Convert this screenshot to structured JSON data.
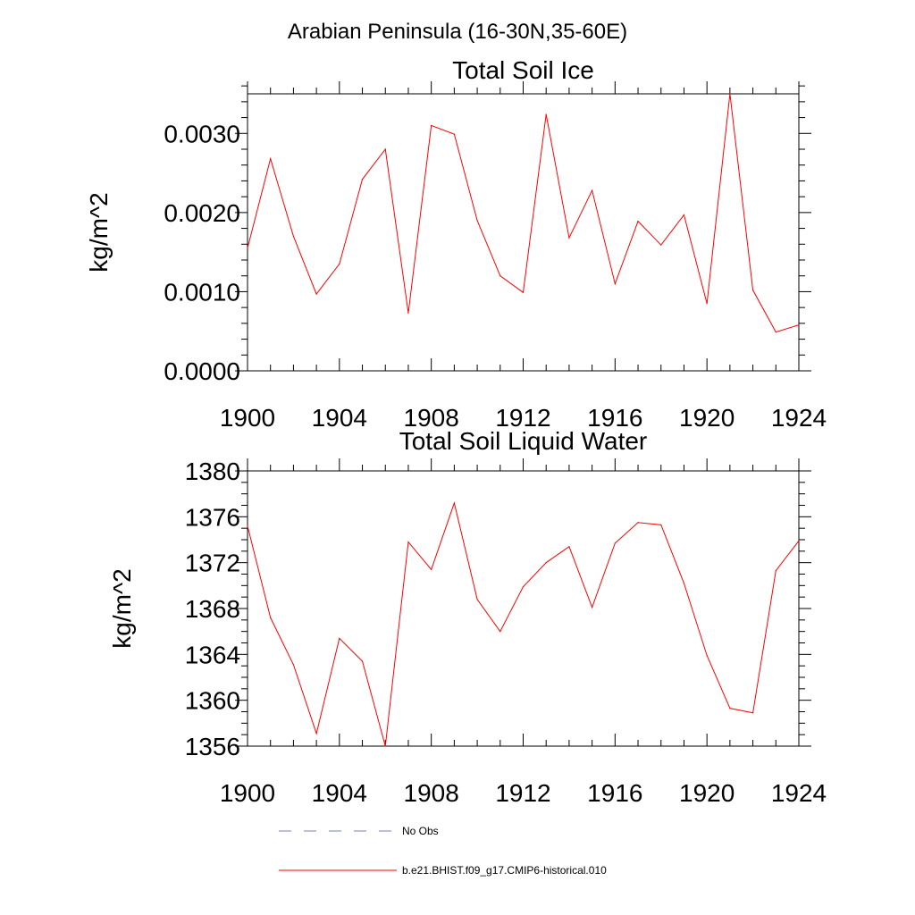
{
  "figure": {
    "supertitle": "Arabian Peninsula (16-30N,35-60E)"
  },
  "legend": {
    "items": [
      {
        "label": "No Obs",
        "color": "#7b7fb8",
        "dash": true
      },
      {
        "label": "b.e21.BHIST.f09_g17.CMIP6-historical.010",
        "color": "#ff0000",
        "dash": false
      }
    ]
  },
  "chart_data": [
    {
      "type": "line",
      "title": "Total Soil Ice",
      "xlabel": "",
      "ylabel": "kg/m^2",
      "xlim": [
        1900,
        1924
      ],
      "ylim": [
        0.0,
        0.0035
      ],
      "xticks": [
        1900,
        1904,
        1908,
        1912,
        1916,
        1920,
        1924
      ],
      "xtick_labels": [
        "1900",
        "1904",
        "1908",
        "1912",
        "1916",
        "1920",
        "1924"
      ],
      "yticks": [
        0.0,
        0.001,
        0.002,
        0.003
      ],
      "ytick_labels": [
        "0.0000",
        "0.0010",
        "0.0020",
        "0.0030"
      ],
      "grid": false,
      "series": [
        {
          "name": "b.e21.BHIST.f09_g17.CMIP6-historical.010",
          "color": "#ff0000",
          "x": [
            1900,
            1901,
            1902,
            1903,
            1904,
            1905,
            1906,
            1907,
            1908,
            1909,
            1910,
            1911,
            1912,
            1913,
            1914,
            1915,
            1916,
            1917,
            1918,
            1919,
            1920,
            1921,
            1922,
            1923,
            1924
          ],
          "y": [
            0.00155,
            0.00268,
            0.0017,
            0.00097,
            0.00135,
            0.00242,
            0.0028,
            0.00073,
            0.0031,
            0.00299,
            0.0019,
            0.0012,
            0.00099,
            0.00324,
            0.00168,
            0.00228,
            0.0011,
            0.00189,
            0.00159,
            0.00197,
            0.00085,
            0.0035,
            0.00102,
            0.00049,
            0.00058
          ]
        }
      ]
    },
    {
      "type": "line",
      "title": "Total Soil Liquid Water",
      "xlabel": "",
      "ylabel": "kg/m^2",
      "xlim": [
        1900,
        1924
      ],
      "ylim": [
        1356,
        1380
      ],
      "xticks": [
        1900,
        1904,
        1908,
        1912,
        1916,
        1920,
        1924
      ],
      "xtick_labels": [
        "1900",
        "1904",
        "1908",
        "1912",
        "1916",
        "1920",
        "1924"
      ],
      "yticks": [
        1356,
        1360,
        1364,
        1368,
        1372,
        1376,
        1380
      ],
      "ytick_labels": [
        "1356",
        "1360",
        "1364",
        "1368",
        "1372",
        "1376",
        "1380"
      ],
      "grid": false,
      "series": [
        {
          "name": "b.e21.BHIST.f09_g17.CMIP6-historical.010",
          "color": "#ff0000",
          "x": [
            1900,
            1901,
            1902,
            1903,
            1904,
            1905,
            1906,
            1907,
            1908,
            1909,
            1910,
            1911,
            1912,
            1913,
            1914,
            1915,
            1916,
            1917,
            1918,
            1919,
            1920,
            1921,
            1922,
            1923,
            1924
          ],
          "y": [
            1375.2,
            1367.2,
            1363.1,
            1357.1,
            1365.4,
            1363.4,
            1356.0,
            1373.8,
            1371.4,
            1377.2,
            1368.8,
            1366.0,
            1369.9,
            1372.0,
            1373.4,
            1368.1,
            1373.7,
            1375.5,
            1375.3,
            1370.2,
            1363.9,
            1359.3,
            1358.9,
            1371.3,
            1373.9
          ]
        }
      ]
    }
  ]
}
